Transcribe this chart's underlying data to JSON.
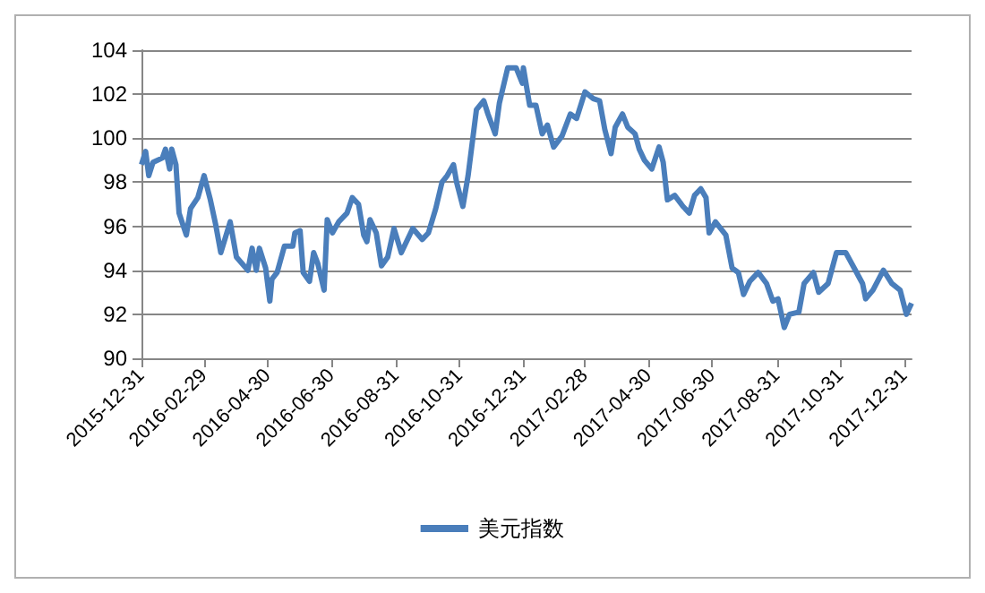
{
  "chart_data": {
    "type": "line",
    "x": [
      "2015-12-31",
      "2016-01-04",
      "2016-01-07",
      "2016-01-11",
      "2016-01-20",
      "2016-01-23",
      "2016-01-27",
      "2016-01-29",
      "2016-02-02",
      "2016-02-05",
      "2016-02-12",
      "2016-02-16",
      "2016-02-23",
      "2016-02-29",
      "2016-03-06",
      "2016-03-11",
      "2016-03-16",
      "2016-03-25",
      "2016-03-31",
      "2016-04-11",
      "2016-04-15",
      "2016-04-19",
      "2016-04-22",
      "2016-04-28",
      "2016-05-02",
      "2016-05-04",
      "2016-05-09",
      "2016-05-16",
      "2016-05-24",
      "2016-05-26",
      "2016-05-31",
      "2016-06-03",
      "2016-06-09",
      "2016-06-13",
      "2016-06-17",
      "2016-06-23",
      "2016-06-26",
      "2016-07-01",
      "2016-07-07",
      "2016-07-15",
      "2016-07-20",
      "2016-07-26",
      "2016-07-31",
      "2016-08-03",
      "2016-08-06",
      "2016-08-12",
      "2016-08-17",
      "2016-08-23",
      "2016-08-29",
      "2016-09-05",
      "2016-09-16",
      "2016-09-25",
      "2016-10-01",
      "2016-10-08",
      "2016-10-14",
      "2016-10-19",
      "2016-10-25",
      "2016-10-28",
      "2016-11-03",
      "2016-11-08",
      "2016-11-16",
      "2016-11-23",
      "2016-11-27",
      "2016-12-04",
      "2016-12-08",
      "2016-12-16",
      "2016-12-24",
      "2016-12-30",
      "2016-12-31",
      "2017-01-06",
      "2017-01-12",
      "2017-01-18",
      "2017-01-23",
      "2017-01-29",
      "2017-02-06",
      "2017-02-14",
      "2017-02-20",
      "2017-02-28",
      "2017-03-08",
      "2017-03-14",
      "2017-03-19",
      "2017-03-25",
      "2017-03-29",
      "2017-04-05",
      "2017-04-10",
      "2017-04-17",
      "2017-04-21",
      "2017-04-26",
      "2017-05-03",
      "2017-05-10",
      "2017-05-14",
      "2017-05-18",
      "2017-05-25",
      "2017-06-02",
      "2017-06-08",
      "2017-06-13",
      "2017-06-19",
      "2017-06-24",
      "2017-06-27",
      "2017-07-03",
      "2017-07-13",
      "2017-07-19",
      "2017-07-25",
      "2017-07-30",
      "2017-08-05",
      "2017-08-13",
      "2017-08-21",
      "2017-08-27",
      "2017-09-01",
      "2017-09-07",
      "2017-09-12",
      "2017-09-21",
      "2017-09-26",
      "2017-10-05",
      "2017-10-10",
      "2017-10-19",
      "2017-10-27",
      "2017-11-05",
      "2017-11-13",
      "2017-11-21",
      "2017-11-24",
      "2017-12-01",
      "2017-12-11",
      "2017-12-19",
      "2017-12-27",
      "2018-01-02",
      "2018-01-07"
    ],
    "series": [
      {
        "name": "美元指数",
        "color": "#4a7ebb",
        "values": [
          98.8,
          99.4,
          98.3,
          98.9,
          99.1,
          99.5,
          98.6,
          99.5,
          98.8,
          96.6,
          95.6,
          96.8,
          97.3,
          98.3,
          97.2,
          96.1,
          94.8,
          96.2,
          94.6,
          94.0,
          95.0,
          94.0,
          95.0,
          94.1,
          92.6,
          93.6,
          93.9,
          95.1,
          95.1,
          95.7,
          95.8,
          93.9,
          93.5,
          94.8,
          94.3,
          93.1,
          96.3,
          95.7,
          96.2,
          96.6,
          97.3,
          97.0,
          95.6,
          95.3,
          96.3,
          95.7,
          94.2,
          94.6,
          95.9,
          94.8,
          95.9,
          95.4,
          95.7,
          96.8,
          98.0,
          98.3,
          98.8,
          98.0,
          96.9,
          98.3,
          101.3,
          101.7,
          101.1,
          100.2,
          101.6,
          103.2,
          103.2,
          102.5,
          103.2,
          101.5,
          101.5,
          100.2,
          100.6,
          99.6,
          100.1,
          101.1,
          100.9,
          102.1,
          101.8,
          101.7,
          100.4,
          99.3,
          100.5,
          101.1,
          100.5,
          100.2,
          99.5,
          99.0,
          98.6,
          99.6,
          98.9,
          97.2,
          97.4,
          96.9,
          96.6,
          97.4,
          97.7,
          97.3,
          95.7,
          96.2,
          95.6,
          94.1,
          93.9,
          92.9,
          93.5,
          93.9,
          93.4,
          92.6,
          92.7,
          91.4,
          92.0,
          92.1,
          93.4,
          93.9,
          93.0,
          93.4,
          94.8,
          94.8,
          94.1,
          93.4,
          92.7,
          93.1,
          94.0,
          93.4,
          93.1,
          92.0,
          92.5
        ]
      }
    ],
    "xlim": [
      "2015-12-31",
      "2018-01-07"
    ],
    "xticks": [
      "2015-12-31",
      "2016-02-29",
      "2016-04-30",
      "2016-06-30",
      "2016-08-31",
      "2016-10-31",
      "2016-12-31",
      "2017-02-28",
      "2017-04-30",
      "2017-06-30",
      "2017-08-31",
      "2017-10-31",
      "2017-12-31"
    ],
    "ylim": [
      90,
      104
    ],
    "yticks": [
      90,
      92,
      94,
      96,
      98,
      100,
      102,
      104
    ],
    "grid": "y",
    "legend": "bottom",
    "marker": "none",
    "line_style": "solid"
  }
}
